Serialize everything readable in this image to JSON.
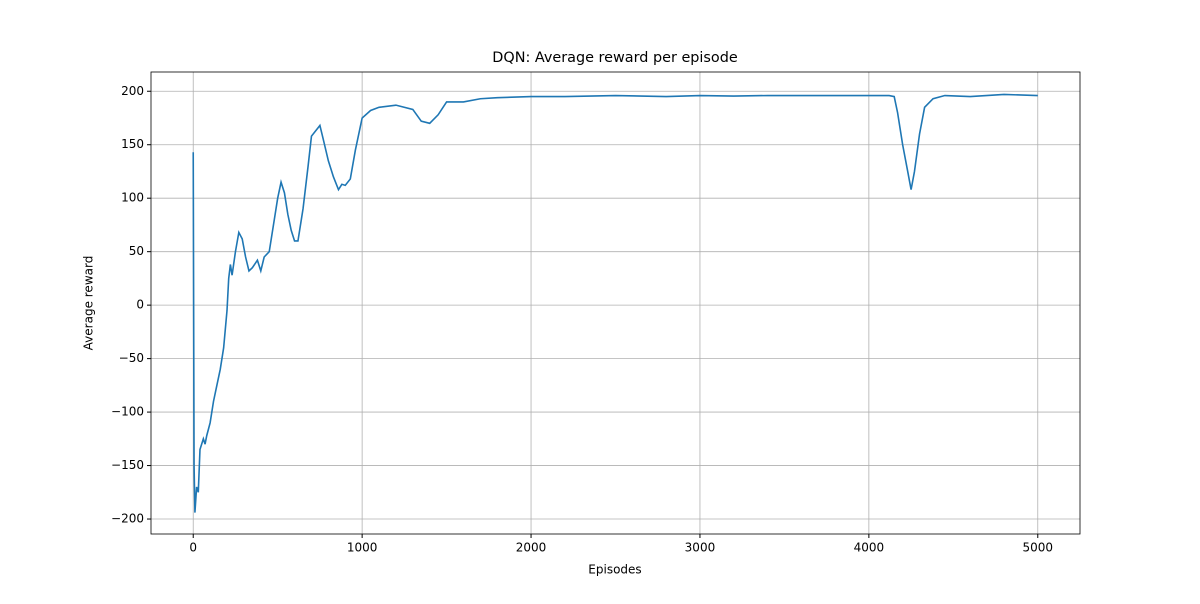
{
  "chart_data": {
    "type": "line",
    "title": "DQN: Average reward per episode",
    "x_label": "Episodes",
    "y_label": "Average reward",
    "x": [
      0,
      5,
      10,
      20,
      30,
      40,
      50,
      60,
      70,
      80,
      100,
      120,
      140,
      160,
      180,
      200,
      210,
      220,
      230,
      250,
      270,
      290,
      310,
      330,
      350,
      380,
      400,
      420,
      450,
      480,
      500,
      520,
      540,
      560,
      580,
      600,
      620,
      650,
      680,
      700,
      720,
      750,
      770,
      800,
      830,
      860,
      880,
      900,
      930,
      960,
      1000,
      1050,
      1100,
      1200,
      1300,
      1350,
      1400,
      1450,
      1500,
      1600,
      1700,
      1800,
      2000,
      2200,
      2500,
      2800,
      3000,
      3200,
      3400,
      3600,
      3800,
      4000,
      4120,
      4150,
      4170,
      4200,
      4230,
      4250,
      4270,
      4300,
      4330,
      4380,
      4450,
      4600,
      4800,
      5000
    ],
    "series": [
      {
        "name": "Average reward",
        "color": "#1f77b4",
        "values": [
          143,
          -150,
          -194,
          -170,
          -175,
          -135,
          -130,
          -125,
          -130,
          -122,
          -110,
          -90,
          -75,
          -60,
          -40,
          -5,
          25,
          38,
          28,
          50,
          68,
          62,
          45,
          32,
          35,
          42,
          32,
          45,
          50,
          80,
          100,
          115,
          105,
          85,
          70,
          60,
          60,
          90,
          130,
          158,
          162,
          168,
          155,
          135,
          120,
          108,
          113,
          112,
          118,
          145,
          175,
          182,
          185,
          187,
          183,
          172,
          170,
          178,
          190,
          190,
          193,
          194,
          195,
          195,
          196,
          195,
          196,
          195.5,
          196,
          196,
          196,
          196,
          196,
          195,
          180,
          150,
          125,
          108,
          125,
          160,
          185,
          193,
          196,
          195,
          197,
          196
        ]
      }
    ],
    "xlim": [
      -250,
      5250
    ],
    "ylim": [
      -214,
      218
    ],
    "xticks": [
      0,
      1000,
      2000,
      3000,
      4000,
      5000
    ],
    "yticks": [
      {
        "value": -200,
        "label": "−200"
      },
      {
        "value": -150,
        "label": "−150"
      },
      {
        "value": -100,
        "label": "−100"
      },
      {
        "value": -50,
        "label": "−50"
      },
      0,
      50,
      100,
      150,
      200
    ],
    "grid": true
  }
}
